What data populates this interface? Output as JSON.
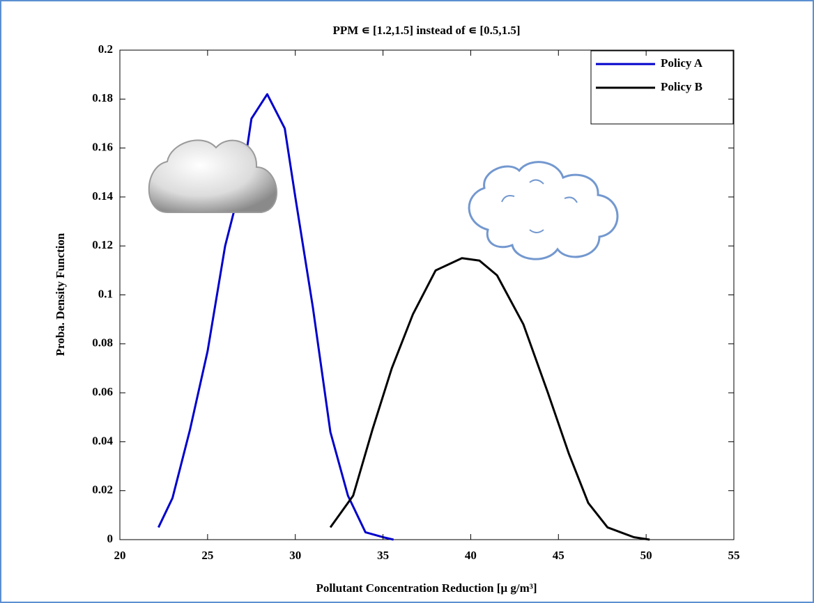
{
  "chart_data": {
    "type": "line",
    "title": "PPM ∊ [1.2,1.5] instead of ∊ [0.5,1.5]",
    "x_label": "Pollutant Concentration Reduction [µ g/m³]",
    "y_label": "Proba. Density Function",
    "xlim": [
      20,
      55
    ],
    "ylim": [
      0,
      0.2
    ],
    "xticks": [
      20,
      25,
      30,
      35,
      40,
      45,
      50,
      55
    ],
    "yticks": [
      0,
      0.02,
      0.04,
      0.06,
      0.08,
      0.1,
      0.12,
      0.14,
      0.16,
      0.18,
      0.2
    ],
    "legend": "upper right",
    "series": [
      {
        "name": "Policy A",
        "color": "#0000cc",
        "x": [
          22.2,
          23,
          24,
          25,
          26,
          27,
          27.5,
          28.4,
          29.4,
          30,
          31,
          32,
          33,
          34,
          35,
          35.6
        ],
        "values": [
          0.005,
          0.017,
          0.045,
          0.077,
          0.12,
          0.148,
          0.172,
          0.182,
          0.168,
          0.14,
          0.095,
          0.044,
          0.018,
          0.003,
          0.001,
          0.0
        ]
      },
      {
        "name": "Policy B",
        "color": "#000000",
        "x": [
          32,
          33.3,
          34.4,
          35.5,
          36.7,
          38,
          39.5,
          40.5,
          41.5,
          43,
          44.4,
          45.6,
          46.7,
          47.8,
          49.3,
          50.2
        ],
        "values": [
          0.005,
          0.018,
          0.045,
          0.07,
          0.092,
          0.11,
          0.115,
          0.114,
          0.108,
          0.088,
          0.06,
          0.035,
          0.015,
          0.005,
          0.001,
          0.0
        ]
      }
    ]
  }
}
